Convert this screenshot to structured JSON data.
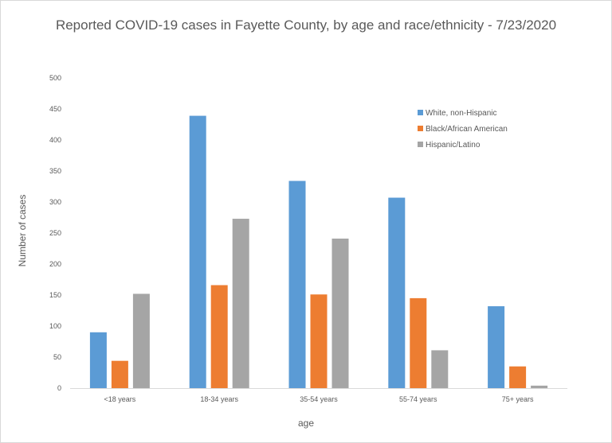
{
  "chart_data": {
    "type": "bar",
    "title": "Reported COVID-19 cases in Fayette County, by age and race/ethnicity - 7/23/2020",
    "xlabel": "age",
    "ylabel": "Number of cases",
    "ylim": [
      0,
      500
    ],
    "yticks": [
      0,
      50,
      100,
      150,
      200,
      250,
      300,
      350,
      400,
      450,
      500
    ],
    "categories": [
      "<18 years",
      "18-34 years",
      "35-54 years",
      "55-74 years",
      "75+ years"
    ],
    "series": [
      {
        "name": "White, non-Hispanic",
        "color": "#5b9bd5",
        "values": [
          90,
          439,
          334,
          307,
          132
        ]
      },
      {
        "name": "Black/African American",
        "color": "#ed7d31",
        "values": [
          44,
          166,
          151,
          145,
          35
        ]
      },
      {
        "name": "Hispanic/Latino",
        "color": "#a5a5a5",
        "values": [
          152,
          273,
          241,
          61,
          4
        ]
      }
    ],
    "grid": false,
    "legend_position": "top-right"
  }
}
